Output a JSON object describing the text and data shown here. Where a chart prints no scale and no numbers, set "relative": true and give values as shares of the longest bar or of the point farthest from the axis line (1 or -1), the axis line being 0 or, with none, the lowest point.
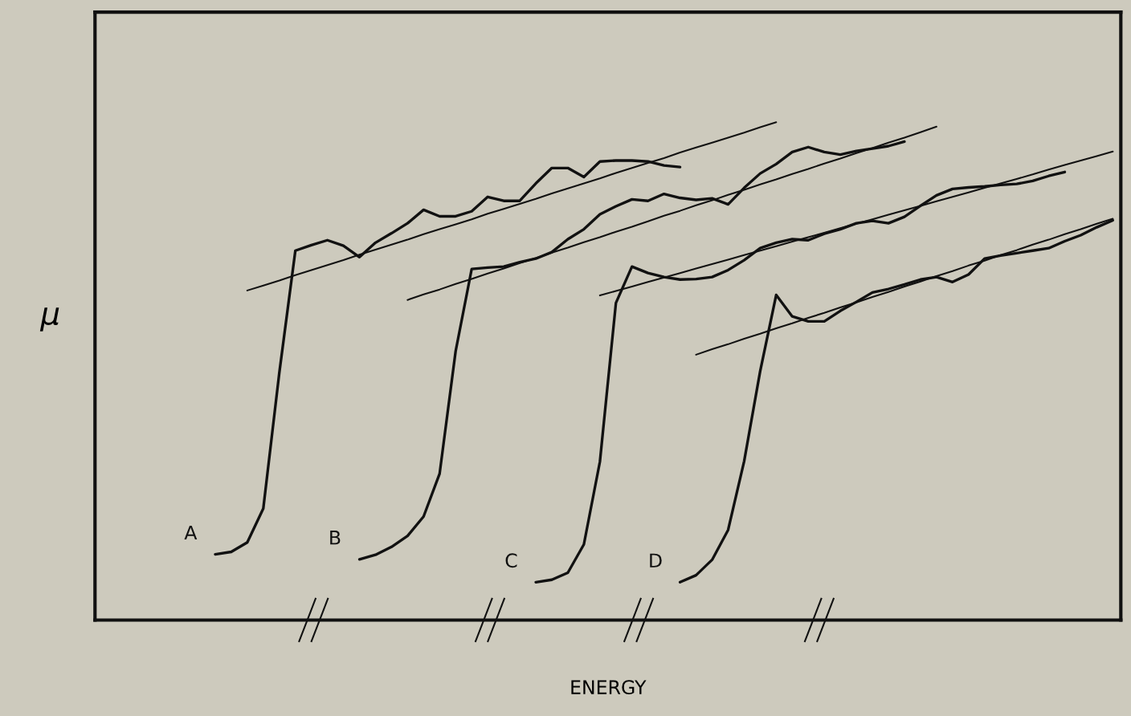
{
  "chart_data": {
    "type": "line",
    "relative": true,
    "xlabel": "ENERGY",
    "ylabel": "μ",
    "marker": "none",
    "line_style": "solid",
    "categories": [
      null,
      null,
      null,
      null,
      null,
      null,
      null,
      null,
      null,
      null,
      null,
      null,
      null,
      null,
      null,
      null,
      null,
      null,
      null,
      null,
      null,
      null,
      null,
      null,
      null,
      null,
      null,
      null,
      null,
      null,
      null,
      null,
      null,
      null,
      null,
      null,
      null,
      null,
      null,
      null,
      null,
      null,
      null,
      null,
      null,
      null,
      null,
      null,
      null,
      null,
      null,
      null,
      null,
      null,
      null,
      null,
      null,
      null,
      null,
      null,
      null,
      null,
      null,
      null
    ],
    "series": [
      {
        "name": "A",
        "color": "#111111",
        "values": [
          null,
          null,
          null,
          null,
          null,
          null,
          null,
          0.132,
          0.137,
          0.156,
          0.224,
          0.497,
          0.742,
          0.753,
          0.763,
          0.752,
          0.729,
          0.758,
          0.777,
          0.797,
          0.824,
          0.811,
          0.811,
          0.821,
          0.85,
          0.842,
          0.842,
          0.877,
          0.908,
          0.908,
          0.89,
          0.921,
          0.923,
          0.923,
          0.921,
          0.913,
          0.91,
          null,
          null,
          null,
          null,
          null,
          null,
          null,
          null,
          null,
          null,
          null,
          null,
          null,
          null,
          null,
          null,
          null,
          null,
          null,
          null,
          null,
          null,
          null,
          null,
          null,
          null,
          null
        ]
      },
      {
        "color": "#111111",
        "values": [
          null,
          null,
          null,
          null,
          null,
          null,
          null,
          null,
          null,
          0.662,
          0.672,
          0.682,
          0.693,
          0.703,
          0.713,
          0.723,
          0.734,
          0.744,
          0.754,
          0.764,
          0.775,
          0.785,
          0.795,
          0.805,
          0.816,
          0.826,
          0.836,
          0.846,
          0.857,
          0.867,
          0.877,
          0.887,
          0.898,
          0.908,
          0.918,
          0.928,
          0.939,
          0.949,
          0.959,
          0.969,
          0.979,
          0.99,
          1.0,
          null,
          null,
          null,
          null,
          null,
          null,
          null,
          null,
          null,
          null,
          null,
          null,
          null,
          null,
          null,
          null,
          null,
          null,
          null,
          null,
          null
        ]
      },
      {
        "name": "B",
        "color": "#111111",
        "values": [
          null,
          null,
          null,
          null,
          null,
          null,
          null,
          null,
          null,
          null,
          null,
          null,
          null,
          null,
          null,
          null,
          0.122,
          0.131,
          0.147,
          0.169,
          0.208,
          0.294,
          0.54,
          0.705,
          0.708,
          0.71,
          0.719,
          0.726,
          0.739,
          0.765,
          0.785,
          0.815,
          0.831,
          0.845,
          0.842,
          0.856,
          0.848,
          0.844,
          0.847,
          0.835,
          0.868,
          0.897,
          0.916,
          0.94,
          0.95,
          0.94,
          0.935,
          0.942,
          0.947,
          0.952,
          0.961,
          null,
          null,
          null,
          null,
          null,
          null,
          null,
          null,
          null,
          null,
          null,
          null,
          null
        ]
      },
      {
        "color": "#111111",
        "values": [
          null,
          null,
          null,
          null,
          null,
          null,
          null,
          null,
          null,
          null,
          null,
          null,
          null,
          null,
          null,
          null,
          null,
          null,
          null,
          0.643,
          0.654,
          0.664,
          0.675,
          0.685,
          0.696,
          0.706,
          0.717,
          0.727,
          0.738,
          0.748,
          0.759,
          0.769,
          0.78,
          0.79,
          0.801,
          0.812,
          0.822,
          0.833,
          0.843,
          0.854,
          0.864,
          0.875,
          0.885,
          0.896,
          0.906,
          0.917,
          0.927,
          0.938,
          0.948,
          0.959,
          0.969,
          0.98,
          0.991,
          null,
          null,
          null,
          null,
          null,
          null,
          null,
          null,
          null,
          null,
          null
        ]
      },
      {
        "name": "C",
        "color": "#111111",
        "values": [
          null,
          null,
          null,
          null,
          null,
          null,
          null,
          null,
          null,
          null,
          null,
          null,
          null,
          null,
          null,
          null,
          null,
          null,
          null,
          null,
          null,
          null,
          null,
          null,
          null,
          null,
          null,
          0.076,
          0.081,
          0.095,
          0.152,
          0.318,
          0.637,
          0.71,
          0.697,
          0.689,
          0.684,
          0.685,
          0.689,
          0.703,
          0.723,
          0.747,
          0.758,
          0.765,
          0.763,
          0.776,
          0.785,
          0.797,
          0.802,
          0.797,
          0.81,
          0.832,
          0.853,
          0.866,
          0.869,
          0.871,
          0.874,
          0.876,
          0.882,
          0.892,
          0.9,
          null,
          null,
          null
        ]
      },
      {
        "color": "#111111",
        "values": [
          null,
          null,
          null,
          null,
          null,
          null,
          null,
          null,
          null,
          null,
          null,
          null,
          null,
          null,
          null,
          null,
          null,
          null,
          null,
          null,
          null,
          null,
          null,
          null,
          null,
          null,
          null,
          null,
          null,
          null,
          null,
          0.652,
          0.661,
          0.67,
          0.679,
          0.688,
          0.697,
          0.706,
          0.715,
          0.724,
          0.733,
          0.742,
          0.751,
          0.76,
          0.769,
          0.778,
          0.787,
          0.796,
          0.805,
          0.814,
          0.823,
          0.832,
          0.841,
          0.85,
          0.859,
          0.868,
          0.877,
          0.886,
          0.895,
          0.905,
          0.914,
          0.923,
          0.932,
          0.941
        ]
      },
      {
        "name": "D",
        "color": "#111111",
        "values": [
          null,
          null,
          null,
          null,
          null,
          null,
          null,
          null,
          null,
          null,
          null,
          null,
          null,
          null,
          null,
          null,
          null,
          null,
          null,
          null,
          null,
          null,
          null,
          null,
          null,
          null,
          null,
          null,
          null,
          null,
          null,
          null,
          null,
          null,
          null,
          null,
          0.076,
          0.09,
          0.121,
          0.181,
          0.319,
          0.5,
          0.653,
          0.61,
          0.6,
          0.6,
          0.621,
          0.639,
          0.658,
          0.665,
          0.674,
          0.684,
          0.689,
          0.679,
          0.694,
          0.726,
          0.732,
          0.737,
          0.742,
          0.747,
          0.761,
          0.773,
          0.789,
          0.803
        ]
      },
      {
        "color": "#111111",
        "values": [
          null,
          null,
          null,
          null,
          null,
          null,
          null,
          null,
          null,
          null,
          null,
          null,
          null,
          null,
          null,
          null,
          null,
          null,
          null,
          null,
          null,
          null,
          null,
          null,
          null,
          null,
          null,
          null,
          null,
          null,
          null,
          null,
          null,
          null,
          null,
          null,
          null,
          0.533,
          0.544,
          0.554,
          0.565,
          0.575,
          0.586,
          0.596,
          0.607,
          0.617,
          0.628,
          0.638,
          0.649,
          0.659,
          0.67,
          0.68,
          0.691,
          0.701,
          0.712,
          0.722,
          0.733,
          0.743,
          0.754,
          0.764,
          0.775,
          0.785,
          0.796,
          0.806
        ]
      }
    ]
  }
}
